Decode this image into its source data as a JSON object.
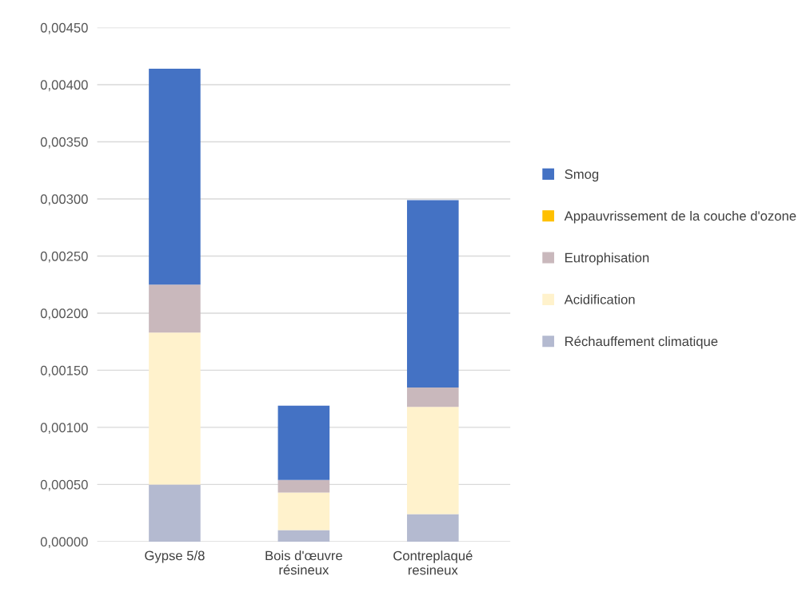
{
  "chart_data": {
    "type": "bar",
    "stacked": true,
    "categories": [
      "Gypse 5/8",
      "Bois d'œuvre\nrésineux",
      "Contreplaqué\nresineux"
    ],
    "series": [
      {
        "name": "Réchauffement climatique",
        "color": "#b4bad0",
        "values": [
          0.0005,
          0.0001,
          0.00024
        ]
      },
      {
        "name": "Acidification",
        "color": "#fff2cc",
        "values": [
          0.00133,
          0.00033,
          0.00094
        ]
      },
      {
        "name": "Eutrophisation",
        "color": "#c9b8bc",
        "values": [
          0.00042,
          0.00011,
          0.00017
        ]
      },
      {
        "name": "Appauvrissement de la couche d'ozone",
        "color": "#ffc000",
        "values": [
          0,
          0,
          0
        ]
      },
      {
        "name": "Smog",
        "color": "#4472c4",
        "values": [
          0.00189,
          0.00065,
          0.00164
        ]
      }
    ],
    "ylim": [
      0,
      0.0045
    ],
    "yticks": [
      {
        "value": 0,
        "label": "0,00000"
      },
      {
        "value": 0.0005,
        "label": "0,00050"
      },
      {
        "value": 0.001,
        "label": "0,00100"
      },
      {
        "value": 0.0015,
        "label": "0,00150"
      },
      {
        "value": 0.002,
        "label": "0,00200"
      },
      {
        "value": 0.0025,
        "label": "0,00250"
      },
      {
        "value": 0.003,
        "label": "0,00300"
      },
      {
        "value": 0.0035,
        "label": "0,00350"
      },
      {
        "value": 0.004,
        "label": "0,00400"
      },
      {
        "value": 0.0045,
        "label": "0,00450"
      }
    ],
    "grid": "y",
    "legend": "right"
  }
}
